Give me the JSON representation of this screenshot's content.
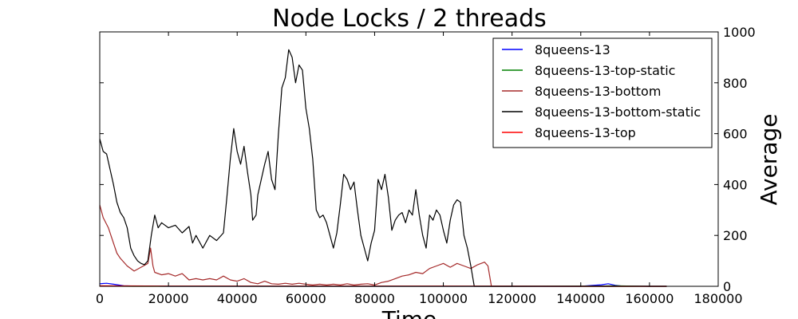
{
  "chart_data": {
    "type": "line",
    "title": "Node Locks / 2 threads",
    "xlabel": "Time",
    "ylabel": "Average",
    "xlim": [
      0,
      180000
    ],
    "ylim": [
      0,
      1000
    ],
    "x_ticks": [
      "0",
      "20000",
      "40000",
      "60000",
      "80000",
      "100000",
      "120000",
      "140000",
      "160000",
      "180000"
    ],
    "y_ticks": [
      "0",
      "200",
      "400",
      "600",
      "800",
      "1000"
    ],
    "y_axis_side": "right",
    "grid": false,
    "legend_position": "top-right",
    "series": [
      {
        "name": "8queens-13",
        "color": "#0000ff",
        "points": [
          [
            0,
            10
          ],
          [
            2000,
            12
          ],
          [
            4000,
            8
          ],
          [
            5500,
            5
          ],
          [
            7000,
            2
          ],
          [
            10000,
            1
          ],
          [
            20000,
            0
          ],
          [
            60000,
            0
          ],
          [
            100000,
            0
          ],
          [
            140000,
            0
          ],
          [
            143000,
            3
          ],
          [
            146000,
            6
          ],
          [
            148000,
            10
          ],
          [
            150000,
            4
          ],
          [
            152000,
            1
          ],
          [
            160000,
            0
          ],
          [
            165000,
            0
          ]
        ]
      },
      {
        "name": "8queens-13-top-static",
        "color": "#008000",
        "points": [
          [
            0,
            1
          ],
          [
            10000,
            0
          ],
          [
            60000,
            0
          ],
          [
            120000,
            0
          ],
          [
            145000,
            1
          ],
          [
            150000,
            2
          ],
          [
            155000,
            1
          ],
          [
            160000,
            0
          ],
          [
            165000,
            0
          ]
        ]
      },
      {
        "name": "8queens-13-bottom",
        "color": "#a52a2a",
        "points": [
          [
            0,
            320
          ],
          [
            1000,
            270
          ],
          [
            2500,
            230
          ],
          [
            4000,
            170
          ],
          [
            5000,
            130
          ],
          [
            6000,
            110
          ],
          [
            8000,
            80
          ],
          [
            10000,
            60
          ],
          [
            12000,
            75
          ],
          [
            14000,
            90
          ],
          [
            14800,
            150
          ],
          [
            15500,
            80
          ],
          [
            16000,
            55
          ],
          [
            18000,
            45
          ],
          [
            20000,
            50
          ],
          [
            22000,
            40
          ],
          [
            24000,
            50
          ],
          [
            26000,
            25
          ],
          [
            28000,
            30
          ],
          [
            30000,
            25
          ],
          [
            32000,
            30
          ],
          [
            34000,
            25
          ],
          [
            36000,
            40
          ],
          [
            38000,
            25
          ],
          [
            40000,
            20
          ],
          [
            42000,
            30
          ],
          [
            44000,
            15
          ],
          [
            46000,
            10
          ],
          [
            48000,
            20
          ],
          [
            50000,
            10
          ],
          [
            52000,
            8
          ],
          [
            54000,
            12
          ],
          [
            56000,
            8
          ],
          [
            58000,
            12
          ],
          [
            60000,
            8
          ],
          [
            62000,
            5
          ],
          [
            64000,
            8
          ],
          [
            66000,
            5
          ],
          [
            68000,
            8
          ],
          [
            70000,
            5
          ],
          [
            72000,
            10
          ],
          [
            74000,
            5
          ],
          [
            76000,
            8
          ],
          [
            78000,
            10
          ],
          [
            80000,
            5
          ],
          [
            82000,
            15
          ],
          [
            84000,
            20
          ],
          [
            86000,
            30
          ],
          [
            88000,
            40
          ],
          [
            90000,
            45
          ],
          [
            92000,
            55
          ],
          [
            94000,
            50
          ],
          [
            96000,
            70
          ],
          [
            98000,
            80
          ],
          [
            100000,
            90
          ],
          [
            102000,
            75
          ],
          [
            104000,
            90
          ],
          [
            106000,
            80
          ],
          [
            108000,
            70
          ],
          [
            110000,
            85
          ],
          [
            112000,
            95
          ],
          [
            113000,
            80
          ],
          [
            114000,
            0
          ],
          [
            130000,
            0
          ],
          [
            150000,
            0
          ],
          [
            165000,
            0
          ]
        ]
      },
      {
        "name": "8queens-13-bottom-static",
        "color": "#000000",
        "points": [
          [
            0,
            580
          ],
          [
            1000,
            530
          ],
          [
            2000,
            520
          ],
          [
            3000,
            460
          ],
          [
            4000,
            400
          ],
          [
            5000,
            330
          ],
          [
            6000,
            290
          ],
          [
            7000,
            270
          ],
          [
            8000,
            230
          ],
          [
            9000,
            150
          ],
          [
            10000,
            120
          ],
          [
            11000,
            100
          ],
          [
            12000,
            90
          ],
          [
            13000,
            85
          ],
          [
            14000,
            100
          ],
          [
            15000,
            200
          ],
          [
            16000,
            280
          ],
          [
            17000,
            230
          ],
          [
            18000,
            250
          ],
          [
            20000,
            230
          ],
          [
            22000,
            240
          ],
          [
            24000,
            210
          ],
          [
            26000,
            235
          ],
          [
            27000,
            170
          ],
          [
            28000,
            200
          ],
          [
            30000,
            150
          ],
          [
            32000,
            200
          ],
          [
            34000,
            180
          ],
          [
            36000,
            210
          ],
          [
            37000,
            350
          ],
          [
            38000,
            500
          ],
          [
            39000,
            620
          ],
          [
            40000,
            530
          ],
          [
            41000,
            480
          ],
          [
            42000,
            550
          ],
          [
            43000,
            450
          ],
          [
            44000,
            360
          ],
          [
            44500,
            260
          ],
          [
            45500,
            280
          ],
          [
            46000,
            360
          ],
          [
            47000,
            420
          ],
          [
            48000,
            480
          ],
          [
            49000,
            530
          ],
          [
            50000,
            420
          ],
          [
            51000,
            380
          ],
          [
            52000,
            600
          ],
          [
            53000,
            780
          ],
          [
            54000,
            820
          ],
          [
            55000,
            930
          ],
          [
            56000,
            900
          ],
          [
            57000,
            800
          ],
          [
            58000,
            870
          ],
          [
            59000,
            850
          ],
          [
            60000,
            700
          ],
          [
            61000,
            620
          ],
          [
            62000,
            500
          ],
          [
            63000,
            300
          ],
          [
            64000,
            270
          ],
          [
            65000,
            280
          ],
          [
            66000,
            250
          ],
          [
            67000,
            200
          ],
          [
            68000,
            150
          ],
          [
            69000,
            210
          ],
          [
            70000,
            320
          ],
          [
            71000,
            440
          ],
          [
            72000,
            420
          ],
          [
            73000,
            380
          ],
          [
            74000,
            410
          ],
          [
            75000,
            300
          ],
          [
            76000,
            200
          ],
          [
            77000,
            150
          ],
          [
            78000,
            100
          ],
          [
            79000,
            170
          ],
          [
            80000,
            220
          ],
          [
            81000,
            420
          ],
          [
            82000,
            380
          ],
          [
            83000,
            440
          ],
          [
            84000,
            350
          ],
          [
            85000,
            220
          ],
          [
            86000,
            260
          ],
          [
            87000,
            280
          ],
          [
            88000,
            290
          ],
          [
            89000,
            250
          ],
          [
            90000,
            300
          ],
          [
            91000,
            280
          ],
          [
            92000,
            380
          ],
          [
            93000,
            280
          ],
          [
            94000,
            200
          ],
          [
            95000,
            150
          ],
          [
            96000,
            280
          ],
          [
            97000,
            260
          ],
          [
            98000,
            300
          ],
          [
            99000,
            280
          ],
          [
            100000,
            220
          ],
          [
            101000,
            170
          ],
          [
            102000,
            260
          ],
          [
            103000,
            320
          ],
          [
            104000,
            340
          ],
          [
            105000,
            330
          ],
          [
            106000,
            200
          ],
          [
            107000,
            150
          ],
          [
            108000,
            80
          ],
          [
            109000,
            0
          ],
          [
            120000,
            0
          ],
          [
            150000,
            0
          ],
          [
            165000,
            0
          ]
        ]
      },
      {
        "name": "8queens-13-top",
        "color": "#ff0000",
        "points": [
          [
            0,
            2
          ],
          [
            20000,
            1
          ],
          [
            60000,
            1
          ],
          [
            100000,
            1
          ],
          [
            140000,
            0
          ],
          [
            165000,
            0
          ]
        ]
      }
    ]
  }
}
